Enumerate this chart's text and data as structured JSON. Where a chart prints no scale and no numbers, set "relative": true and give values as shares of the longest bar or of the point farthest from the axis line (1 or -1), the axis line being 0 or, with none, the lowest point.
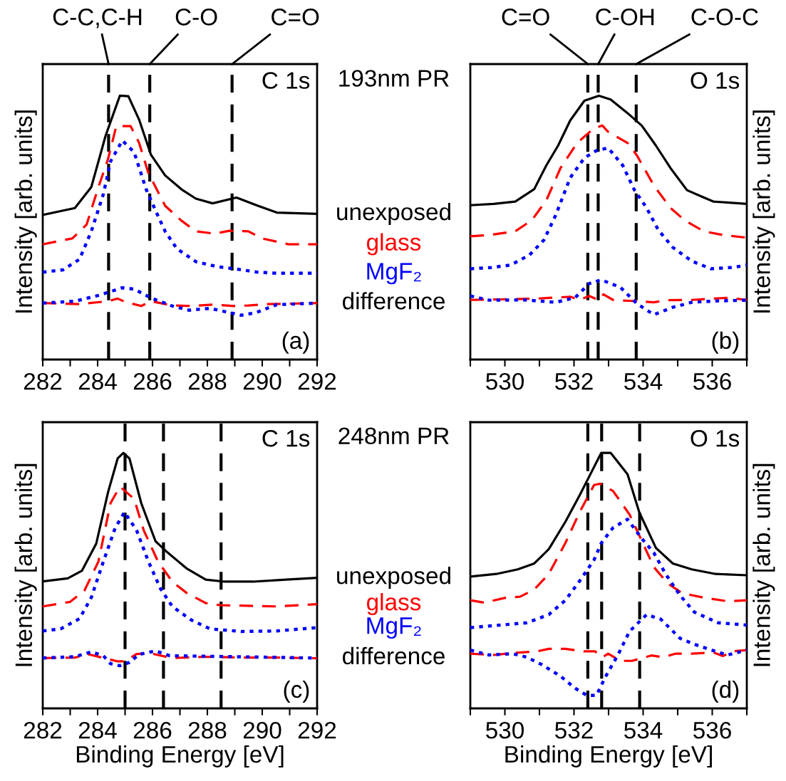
{
  "chart_data": [
    {
      "type": "line",
      "title": "C 1s",
      "subtitle": "193nm PR",
      "ylabel": "Intensity [arb. units]",
      "annotations": [
        "(a)",
        "difference"
      ],
      "relative": true,
      "legend": false,
      "xlim": [
        282,
        292
      ],
      "xticks": [
        282,
        {
          "value": 283,
          "label": null
        },
        284,
        {
          "value": 285,
          "label": null
        },
        286,
        {
          "value": 287,
          "label": null
        },
        288,
        {
          "value": 289,
          "label": null
        },
        290,
        {
          "value": 291,
          "label": null
        },
        292
      ],
      "ref_lines": [
        {
          "axis": "x",
          "value": 284.4,
          "label": "C-C,C-H",
          "line_style": "dashed"
        },
        {
          "axis": "x",
          "value": 285.9,
          "label": "C-O",
          "line_style": "dashed"
        },
        {
          "axis": "x",
          "value": 288.9,
          "label": "C=O",
          "line_style": "dashed"
        }
      ],
      "series": [
        {
          "name": "unexposed",
          "color": "#000000",
          "line_style": "solid",
          "x": [
            282.0,
            283.17,
            283.77,
            284.29,
            284.81,
            285.12,
            285.51,
            285.94,
            286.46,
            287.06,
            287.58,
            288.19,
            289.06,
            289.84,
            290.53,
            292.0
          ],
          "values": [
            0.548,
            0.574,
            0.654,
            0.848,
            1.0,
            0.998,
            0.91,
            0.777,
            0.698,
            0.645,
            0.61,
            0.592,
            0.614,
            0.583,
            0.557,
            0.552
          ]
        },
        {
          "name": "glass",
          "color": "#ff0000",
          "line_style": "dashed",
          "x": [
            282.0,
            283.08,
            283.6,
            284.03,
            284.38,
            284.68,
            285.2,
            285.51,
            285.85,
            286.46,
            287.06,
            287.58,
            288.28,
            288.8,
            289.49,
            290.0,
            290.96,
            292.0
          ],
          "values": [
            0.437,
            0.459,
            0.512,
            0.654,
            0.76,
            0.885,
            0.885,
            0.822,
            0.707,
            0.583,
            0.526,
            0.486,
            0.477,
            0.488,
            0.486,
            0.459,
            0.437,
            0.437
          ]
        },
        {
          "name": "MgF₂",
          "color": "#0000ff",
          "line_style": "dotted",
          "x": [
            282.0,
            282.74,
            283.34,
            283.77,
            284.21,
            284.47,
            284.9,
            285.33,
            285.77,
            286.11,
            286.46,
            286.89,
            287.58,
            288.36,
            289.06,
            289.84,
            290.53,
            292.0
          ],
          "values": [
            0.331,
            0.34,
            0.38,
            0.486,
            0.627,
            0.751,
            0.83,
            0.786,
            0.645,
            0.565,
            0.486,
            0.42,
            0.371,
            0.352,
            0.343,
            0.331,
            0.327,
            0.327
          ]
        },
        {
          "color": "#ff0000",
          "line_style": "dashed",
          "x": [
            282.0,
            283.34,
            284.38,
            284.73,
            284.99,
            285.59,
            285.94,
            286.72,
            287.41,
            288.19,
            288.97,
            289.49,
            290.18,
            292.0
          ],
          "values": [
            0.214,
            0.21,
            0.221,
            0.231,
            0.219,
            0.203,
            0.221,
            0.205,
            0.203,
            0.208,
            0.203,
            0.205,
            0.21,
            0.214
          ]
        },
        {
          "color": "#0000ff",
          "line_style": "dotted",
          "x": [
            282.0,
            283.17,
            284.03,
            284.9,
            285.33,
            285.94,
            286.72,
            287.32,
            288.1,
            288.8,
            289.23,
            289.75,
            290.53,
            292.0
          ],
          "values": [
            0.214,
            0.221,
            0.243,
            0.272,
            0.267,
            0.234,
            0.203,
            0.187,
            0.194,
            0.178,
            0.168,
            0.177,
            0.208,
            0.214
          ]
        }
      ]
    },
    {
      "type": "line",
      "title": "O 1s",
      "ylabel": "Intensity [arb. units]",
      "annotations": [
        "(b)"
      ],
      "relative": true,
      "legend": false,
      "xlim": [
        529,
        537
      ],
      "xticks": [
        {
          "value": 529,
          "label": null
        },
        530,
        {
          "value": 531,
          "label": null
        },
        532,
        {
          "value": 533,
          "label": null
        },
        534,
        {
          "value": 535,
          "label": null
        },
        536,
        {
          "value": 537,
          "label": null
        }
      ],
      "ref_lines": [
        {
          "axis": "x",
          "value": 532.4,
          "label": "C=O",
          "line_style": "dashed"
        },
        {
          "axis": "x",
          "value": 532.7,
          "label": "C-OH",
          "line_style": "dashed"
        },
        {
          "axis": "x",
          "value": 533.8,
          "label": "C-O-C",
          "line_style": "dashed"
        }
      ],
      "series": [
        {
          "color": "#000000",
          "line_style": "solid",
          "x": [
            529.0,
            529.68,
            530.3,
            530.85,
            531.2,
            531.54,
            531.89,
            532.3,
            532.72,
            533.06,
            533.55,
            533.96,
            534.37,
            534.79,
            535.27,
            535.69,
            536.03,
            537.0
          ],
          "values": [
            0.585,
            0.59,
            0.599,
            0.646,
            0.736,
            0.811,
            0.906,
            0.981,
            1.0,
            0.986,
            0.934,
            0.887,
            0.811,
            0.726,
            0.642,
            0.618,
            0.599,
            0.59
          ]
        },
        {
          "color": "#ff0000",
          "line_style": "dashed",
          "x": [
            529.0,
            529.54,
            530.3,
            530.78,
            531.2,
            531.61,
            532.09,
            532.58,
            532.82,
            532.99,
            533.55,
            533.82,
            534.31,
            534.79,
            535.2,
            535.76,
            536.31,
            537.0
          ],
          "values": [
            0.467,
            0.472,
            0.486,
            0.528,
            0.604,
            0.726,
            0.821,
            0.877,
            0.887,
            0.863,
            0.821,
            0.774,
            0.66,
            0.575,
            0.528,
            0.486,
            0.472,
            0.462
          ]
        },
        {
          "color": "#0000ff",
          "line_style": "dotted",
          "x": [
            529.0,
            529.61,
            530.16,
            530.71,
            531.13,
            531.47,
            531.89,
            532.3,
            532.65,
            532.99,
            533.41,
            533.75,
            534.1,
            534.44,
            534.86,
            535.41,
            535.96,
            536.59,
            537.0
          ],
          "values": [
            0.344,
            0.349,
            0.358,
            0.396,
            0.453,
            0.547,
            0.689,
            0.764,
            0.792,
            0.802,
            0.736,
            0.642,
            0.575,
            0.491,
            0.425,
            0.373,
            0.344,
            0.349,
            0.358
          ]
        },
        {
          "color": "#ff0000",
          "line_style": "dashed",
          "x": [
            529.0,
            529.88,
            530.92,
            531.89,
            532.16,
            532.44,
            532.72,
            532.85,
            533.13,
            533.68,
            534.31,
            534.72,
            535.41,
            536.45,
            537.0
          ],
          "values": [
            0.226,
            0.228,
            0.231,
            0.238,
            0.226,
            0.241,
            0.225,
            0.247,
            0.226,
            0.222,
            0.217,
            0.225,
            0.226,
            0.234,
            0.226
          ]
        },
        {
          "color": "#0000ff",
          "line_style": "dotted",
          "x": [
            529.0,
            529.54,
            530.57,
            531.47,
            532.03,
            532.44,
            532.79,
            533.34,
            533.82,
            534.31,
            534.86,
            535.41,
            536.1,
            537.0
          ],
          "values": [
            0.241,
            0.225,
            0.226,
            0.217,
            0.234,
            0.288,
            0.302,
            0.274,
            0.212,
            0.17,
            0.198,
            0.217,
            0.222,
            0.225
          ]
        }
      ]
    },
    {
      "type": "line",
      "title": "C 1s",
      "subtitle": "248nm PR",
      "ylabel": "Intensity [arb. units]",
      "xlabel": "Binding Energy [eV]",
      "annotations": [
        "(c)",
        "difference"
      ],
      "relative": true,
      "legend": false,
      "xlim": [
        282,
        292
      ],
      "xticks": [
        282,
        {
          "value": 283,
          "label": null
        },
        284,
        {
          "value": 285,
          "label": null
        },
        286,
        {
          "value": 287,
          "label": null
        },
        288,
        {
          "value": 289,
          "label": null
        },
        290,
        {
          "value": 291,
          "label": null
        },
        292
      ],
      "ref_lines": [
        {
          "axis": "x",
          "value": 285.0,
          "line_style": "dashed"
        },
        {
          "axis": "x",
          "value": 286.4,
          "line_style": "dashed"
        },
        {
          "axis": "x",
          "value": 288.5,
          "line_style": "dashed"
        }
      ],
      "series": [
        {
          "name": "unexposed",
          "color": "#000000",
          "line_style": "solid",
          "x": [
            282.0,
            282.91,
            283.43,
            283.95,
            284.38,
            284.73,
            284.94,
            285.16,
            285.59,
            286.11,
            286.55,
            287.24,
            287.94,
            288.63,
            289.66,
            290.87,
            292.0
          ],
          "values": [
            0.497,
            0.509,
            0.539,
            0.645,
            0.846,
            0.978,
            1.0,
            0.978,
            0.803,
            0.654,
            0.61,
            0.548,
            0.504,
            0.496,
            0.496,
            0.504,
            0.511
          ]
        },
        {
          "name": "glass",
          "color": "#ff0000",
          "line_style": "dashed",
          "x": [
            282.0,
            283.0,
            283.52,
            284.03,
            284.47,
            284.81,
            285.33,
            285.68,
            286.2,
            286.72,
            287.24,
            287.94,
            288.45,
            289.23,
            290.53,
            292.0
          ],
          "values": [
            0.399,
            0.417,
            0.461,
            0.575,
            0.803,
            0.868,
            0.82,
            0.697,
            0.575,
            0.496,
            0.452,
            0.412,
            0.404,
            0.402,
            0.399,
            0.408
          ]
        },
        {
          "name": "MgF₂",
          "color": "#0000ff",
          "line_style": "dotted",
          "x": [
            282.0,
            282.65,
            283.34,
            283.77,
            284.21,
            284.64,
            284.98,
            285.42,
            285.85,
            286.29,
            286.72,
            287.41,
            288.1,
            289.23,
            290.53,
            292.0
          ],
          "values": [
            0.303,
            0.311,
            0.351,
            0.434,
            0.575,
            0.706,
            0.768,
            0.697,
            0.575,
            0.469,
            0.399,
            0.346,
            0.311,
            0.301,
            0.303,
            0.316
          ]
        },
        {
          "color": "#ff0000",
          "line_style": "dashed",
          "x": [
            282.0,
            283.17,
            283.69,
            284.38,
            284.73,
            284.99,
            285.42,
            285.94,
            286.72,
            287.93,
            289.23,
            290.53,
            292.0
          ],
          "values": [
            0.197,
            0.199,
            0.211,
            0.193,
            0.184,
            0.184,
            0.213,
            0.215,
            0.197,
            0.202,
            0.199,
            0.199,
            0.196
          ]
        },
        {
          "color": "#0000ff",
          "line_style": "dotted",
          "x": [
            282.0,
            283.17,
            283.77,
            284.21,
            284.47,
            284.81,
            285.16,
            285.51,
            286.11,
            286.63,
            287.93,
            289.23,
            292.0
          ],
          "values": [
            0.197,
            0.202,
            0.221,
            0.206,
            0.175,
            0.167,
            0.18,
            0.211,
            0.225,
            0.206,
            0.204,
            0.202,
            0.197
          ]
        }
      ]
    },
    {
      "type": "line",
      "title": "O 1s",
      "ylabel": "Intensity [arb. units]",
      "xlabel": "Binding Energy [eV]",
      "annotations": [
        "(d)"
      ],
      "relative": true,
      "legend": false,
      "xlim": [
        529,
        537
      ],
      "xticks": [
        {
          "value": 529,
          "label": null
        },
        530,
        {
          "value": 531,
          "label": null
        },
        532,
        {
          "value": 533,
          "label": null
        },
        534,
        {
          "value": 535,
          "label": null
        },
        536,
        {
          "value": 537,
          "label": null
        }
      ],
      "ref_lines": [
        {
          "axis": "x",
          "value": 532.4,
          "line_style": "dashed"
        },
        {
          "axis": "x",
          "value": 532.8,
          "line_style": "dashed"
        },
        {
          "axis": "x",
          "value": 533.9,
          "line_style": "dashed"
        }
      ],
      "series": [
        {
          "color": "#000000",
          "line_style": "solid",
          "x": [
            529.0,
            529.75,
            530.37,
            530.85,
            531.27,
            531.75,
            532.16,
            532.51,
            532.79,
            533.06,
            533.55,
            533.89,
            534.37,
            534.86,
            535.41,
            536.1,
            537.0
          ],
          "values": [
            0.516,
            0.526,
            0.544,
            0.567,
            0.623,
            0.73,
            0.833,
            0.926,
            1.0,
            1.0,
            0.916,
            0.767,
            0.628,
            0.567,
            0.544,
            0.526,
            0.521
          ]
        },
        {
          "color": "#ff0000",
          "line_style": "dashed",
          "x": [
            529.0,
            529.4,
            530.02,
            530.44,
            530.85,
            531.27,
            531.75,
            532.16,
            532.58,
            532.75,
            533.13,
            533.61,
            533.96,
            534.31,
            534.72,
            535.13,
            535.76,
            536.45,
            537.0
          ],
          "values": [
            0.423,
            0.414,
            0.433,
            0.437,
            0.465,
            0.526,
            0.647,
            0.767,
            0.874,
            0.879,
            0.851,
            0.758,
            0.656,
            0.553,
            0.488,
            0.451,
            0.433,
            0.419,
            0.423
          ]
        },
        {
          "color": "#0000ff",
          "line_style": "dotted",
          "x": [
            529.0,
            529.61,
            530.64,
            531.27,
            531.75,
            532.16,
            532.58,
            532.79,
            533.13,
            533.55,
            533.96,
            534.31,
            534.65,
            535.07,
            535.48,
            536.17,
            537.0
          ],
          "values": [
            0.316,
            0.323,
            0.335,
            0.367,
            0.423,
            0.498,
            0.581,
            0.647,
            0.707,
            0.74,
            0.665,
            0.609,
            0.526,
            0.442,
            0.377,
            0.335,
            0.326
          ]
        },
        {
          "color": "#ff0000",
          "line_style": "dashed",
          "x": [
            529.0,
            529.68,
            530.23,
            530.92,
            531.27,
            531.75,
            532.3,
            532.61,
            532.82,
            532.99,
            533.34,
            533.68,
            534.24,
            534.58,
            534.93,
            535.41,
            536.03,
            536.31,
            536.59,
            537.0
          ],
          "values": [
            0.214,
            0.209,
            0.217,
            0.223,
            0.233,
            0.233,
            0.223,
            0.223,
            0.2,
            0.214,
            0.186,
            0.186,
            0.207,
            0.2,
            0.214,
            0.214,
            0.219,
            0.205,
            0.223,
            0.228
          ]
        },
        {
          "color": "#0000ff",
          "line_style": "dotted",
          "x": [
            529.0,
            529.54,
            530.23,
            530.64,
            531.06,
            531.61,
            532.03,
            532.37,
            532.65,
            532.92,
            533.27,
            533.61,
            534.1,
            534.51,
            535.07,
            535.48,
            536.1,
            536.45,
            537.0
          ],
          "values": [
            0.228,
            0.209,
            0.214,
            0.2,
            0.172,
            0.126,
            0.079,
            0.051,
            0.051,
            0.126,
            0.209,
            0.302,
            0.367,
            0.349,
            0.274,
            0.251,
            0.223,
            0.209,
            0.228
          ]
        }
      ]
    }
  ]
}
